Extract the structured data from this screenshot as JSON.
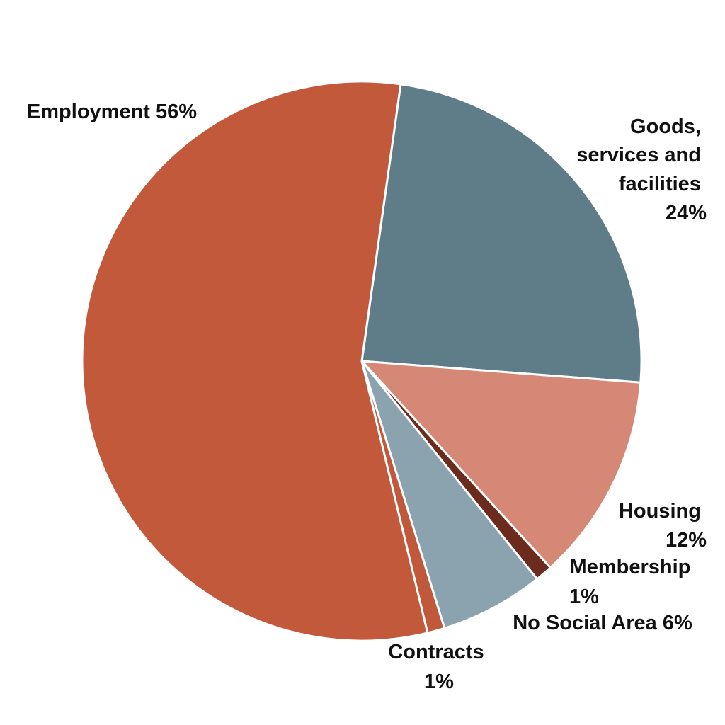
{
  "chart_data": {
    "type": "pie",
    "slices": [
      {
        "label": "Goods, services and facilities",
        "value": 24,
        "value_label": "24%",
        "color": "#5e7d89"
      },
      {
        "label": "Housing",
        "value": 12,
        "value_label": "12%",
        "color": "#d68876"
      },
      {
        "label": "Membership",
        "value": 1,
        "value_label": "1%",
        "color": "#6b2c1e"
      },
      {
        "label": "No Social Area",
        "value": 6,
        "value_label": "6%",
        "color": "#8aa3ae"
      },
      {
        "label": "Contracts",
        "value": 1,
        "value_label": "1%",
        "color": "#c0583c"
      },
      {
        "label": "Employment",
        "value": 56,
        "value_label": "56%",
        "color": "#c2593b"
      }
    ],
    "start_direction": "top",
    "direction": "clockwise",
    "legend": "none"
  },
  "labels": {
    "employment": [
      "Employment 56%"
    ],
    "goods": [
      "Goods,",
      "services and",
      "facilities",
      "24%"
    ],
    "housing": [
      "Housing",
      "12%"
    ],
    "membership": [
      "Membership",
      "1%"
    ],
    "no_social_area": [
      "No Social Area 6%"
    ],
    "contracts": [
      "Contracts",
      "1%"
    ]
  }
}
